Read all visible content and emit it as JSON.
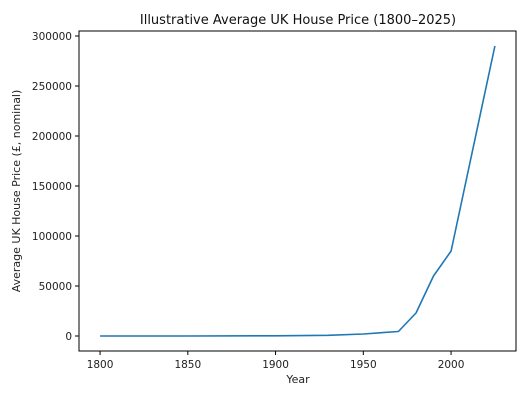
{
  "chart_data": {
    "type": "line",
    "title": "Illustrative Average UK House Price (1800–2025)",
    "xlabel": "Year",
    "ylabel": "Average UK House Price (£, nominal)",
    "xlim": [
      1788,
      2037
    ],
    "ylim": [
      -15000,
      305000
    ],
    "x_ticks": [
      1800,
      1850,
      1900,
      1950,
      2000
    ],
    "y_ticks": [
      0,
      50000,
      100000,
      150000,
      200000,
      250000,
      300000
    ],
    "grid": false,
    "legend": "none",
    "series": [
      {
        "color": "#1f77b4",
        "x": [
          1800,
          1850,
          1900,
          1930,
          1950,
          1970,
          1980,
          1990,
          2000,
          2010,
          2025
        ],
        "values": [
          0,
          0,
          200,
          700,
          2000,
          4500,
          23000,
          60000,
          85000,
          167000,
          290000
        ]
      }
    ]
  }
}
